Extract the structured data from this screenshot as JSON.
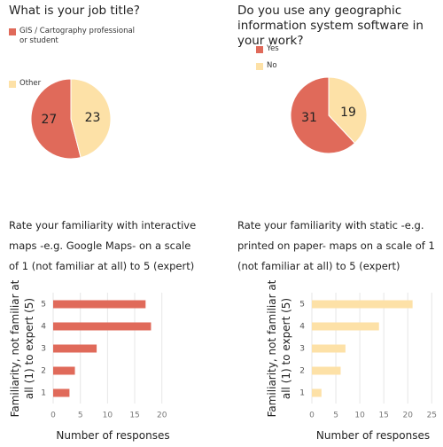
{
  "chart_data": [
    {
      "type": "pie",
      "title": "What is your job title?",
      "labels": [
        "GIS / Cartography professional or student",
        "Other"
      ],
      "values": [
        27,
        23
      ],
      "colors": [
        "#e06a5a",
        "#fde1a7"
      ]
    },
    {
      "type": "pie",
      "title": "Do you use any geographic information system software in your work?",
      "labels": [
        "Yes",
        "No"
      ],
      "values": [
        31,
        19
      ],
      "colors": [
        "#e06a5a",
        "#fde1a7"
      ]
    },
    {
      "type": "bar",
      "title": "Rate your familiarity with interactive maps -e.g. Google Maps- on a scale of 1 (not familiar at all) to 5 (expert)",
      "categories": [
        "1",
        "2",
        "3",
        "4",
        "5"
      ],
      "values": [
        3,
        4,
        8,
        18,
        17
      ],
      "color": "#e06a5a",
      "xlim": [
        0,
        22
      ],
      "xticks": [
        0,
        5,
        10,
        15,
        20
      ],
      "grid": true,
      "xlabel": "Number of responses",
      "ylabel": "Familiarity, not familiar at all (1) to expert (5)"
    },
    {
      "type": "bar",
      "title": "Rate your familiarity with static -e.g. printed on paper- maps on a scale of 1 (not familiar at all) to 5 (expert)",
      "categories": [
        "1",
        "2",
        "3",
        "4",
        "5"
      ],
      "values": [
        2,
        6,
        7,
        14,
        21
      ],
      "color": "#fde1a7",
      "xlim": [
        0,
        25.5
      ],
      "xticks": [
        0,
        5,
        10,
        15,
        20,
        25
      ],
      "grid": true,
      "xlabel": "Number of responses",
      "ylabel": "Familiarity, not familiar at all (1) to expert (5)"
    }
  ]
}
